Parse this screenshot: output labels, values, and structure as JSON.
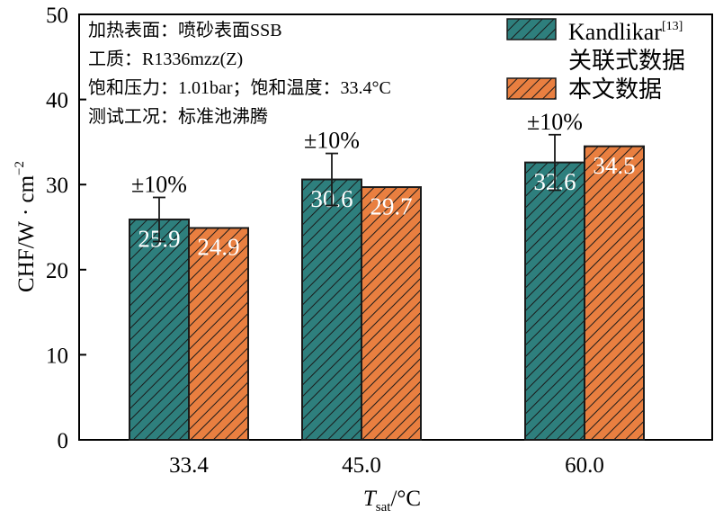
{
  "colors": {
    "teal": "#2e7f7d",
    "orange": "#e97f40",
    "axis": "#000000",
    "label_text": "#ffffff"
  },
  "annotations": {
    "lines": [
      "加热表面：喷砂表面SSB",
      "工质：R1336mzz(Z)",
      "饱和压力：1.01bar；饱和温度：33.4°C",
      "测试工况：标准池沸腾"
    ]
  },
  "chart_data": {
    "type": "bar",
    "categories": [
      "33.4",
      "45.0",
      "60.0"
    ],
    "series": [
      {
        "name": "Kandlikar[13] 关联式数据",
        "name_main": "Kandlikar",
        "name_ref": "[13]",
        "name_line2": "关联式数据",
        "values": [
          25.9,
          30.6,
          32.6
        ],
        "error_pct": 10,
        "error_label": "±10%",
        "color": "#2e7f7d"
      },
      {
        "name": "本文数据",
        "values": [
          24.9,
          29.7,
          34.5
        ],
        "color": "#e97f40"
      }
    ],
    "value_labels": [
      [
        "25.9",
        "24.9"
      ],
      [
        "30.6",
        "29.7"
      ],
      [
        "32.6",
        "34.5"
      ]
    ],
    "ylim": [
      0,
      50
    ],
    "yticks": [
      0,
      10,
      20,
      30,
      40,
      50
    ],
    "ytick_labels": [
      "0",
      "10",
      "20",
      "30",
      "40",
      "50"
    ],
    "ylabel": {
      "base": "CHF/W · cm",
      "sup": "−2"
    },
    "xlabel": {
      "symbol": "T",
      "sub": "sat",
      "unit": "/°C"
    },
    "grid": false,
    "legend_position": "top-right"
  }
}
